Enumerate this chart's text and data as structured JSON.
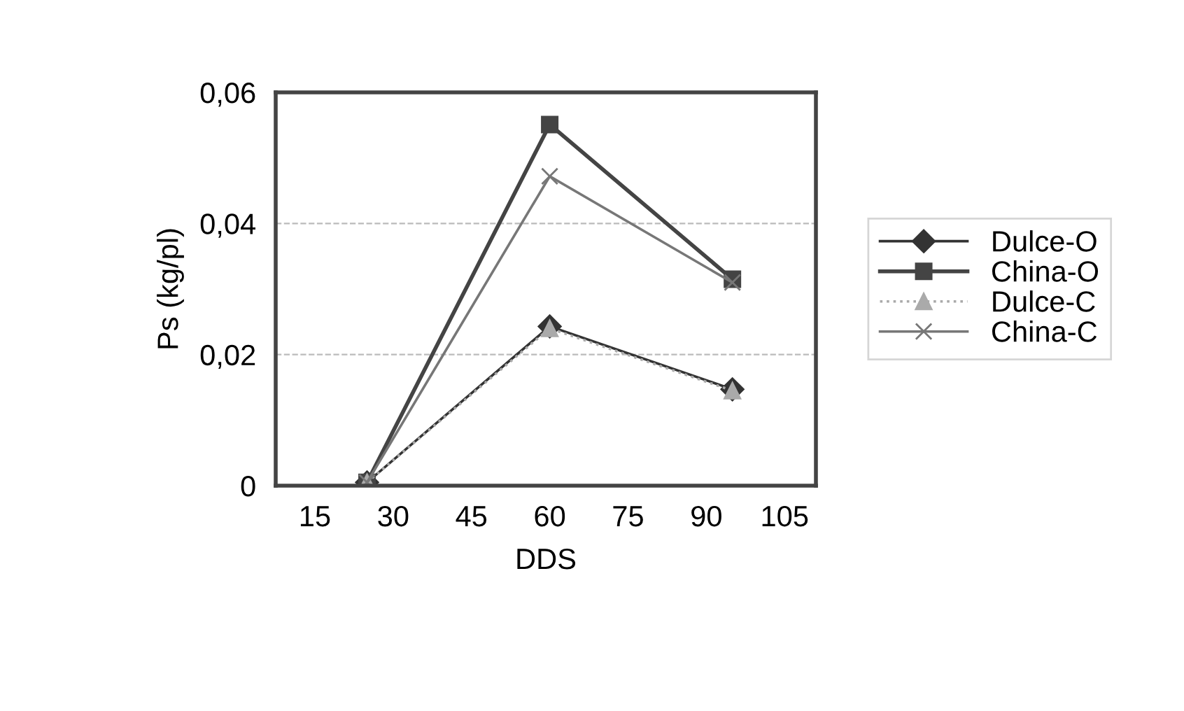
{
  "chart_data": {
    "type": "line",
    "xlabel": "DDS",
    "ylabel": "Ps (kg/pl)",
    "x": [
      25,
      60,
      95
    ],
    "series": [
      {
        "name": "Dulce-O",
        "color": "#333333",
        "values": [
          0.0005,
          0.0243,
          0.0147
        ],
        "marker": "diamond",
        "line_style": "solid"
      },
      {
        "name": "China-O",
        "color": "#444444",
        "values": [
          0.0005,
          0.0551,
          0.0315
        ],
        "marker": "square",
        "line_style": "solid"
      },
      {
        "name": "Dulce-C",
        "color": "#aaaaaa",
        "values": [
          0.0005,
          0.024,
          0.0145
        ],
        "marker": "triangle",
        "line_style": "dotted"
      },
      {
        "name": "China-C",
        "color": "#777777",
        "values": [
          0.0005,
          0.0472,
          0.031
        ],
        "marker": "cross",
        "line_style": "solid"
      }
    ],
    "xlim": [
      7.5,
      111
    ],
    "xticks": [
      15,
      30,
      45,
      60,
      75,
      90,
      105
    ],
    "ylim": [
      0,
      0.06
    ],
    "yticks": [
      {
        "value": 0,
        "label": "0"
      },
      {
        "value": 0.02,
        "label": "0,02"
      },
      {
        "value": 0.04,
        "label": "0,04"
      },
      {
        "value": 0.06,
        "label": "0,06"
      }
    ],
    "grid": "y",
    "legend": "right"
  }
}
